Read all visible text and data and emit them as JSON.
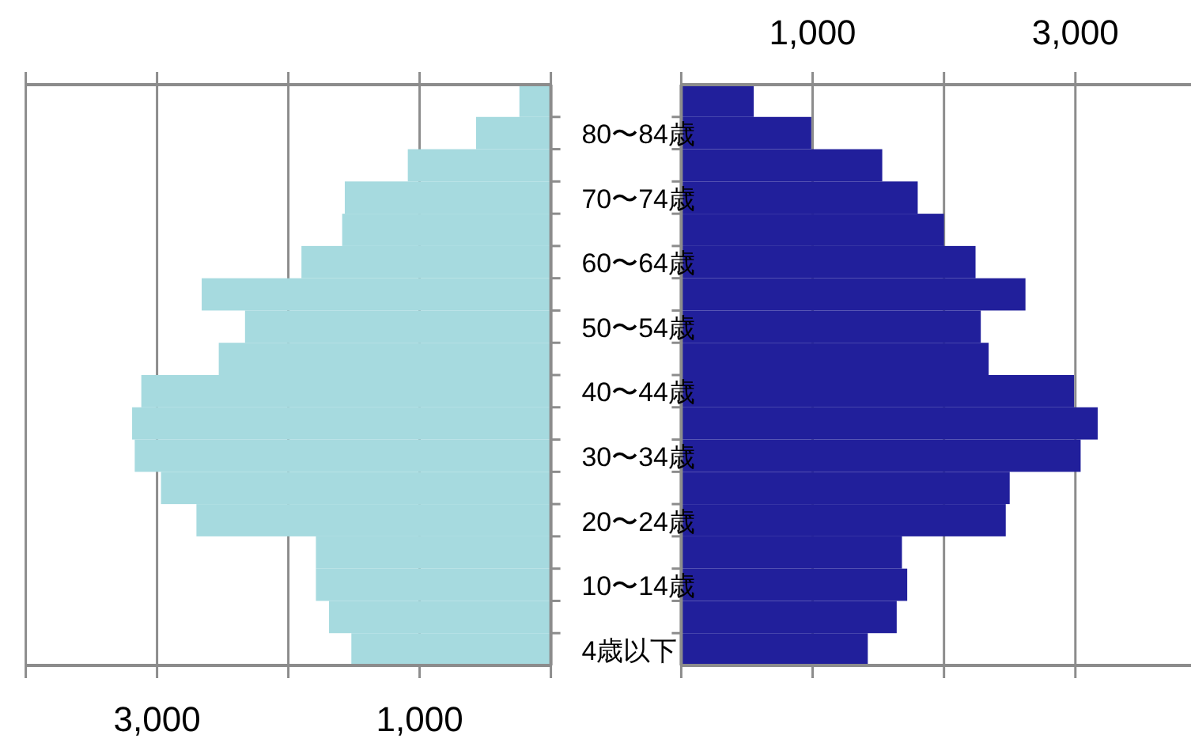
{
  "chart_data": [
    {
      "type": "bar",
      "orientation": "horizontal",
      "categories": [
        null,
        null,
        null,
        null,
        null,
        null,
        null,
        null,
        null,
        null,
        null,
        null,
        null,
        null,
        null,
        null,
        null,
        null
      ],
      "values": [
        240,
        570,
        1090,
        1570,
        1590,
        1900,
        2660,
        2330,
        2530,
        3120,
        3190,
        3170,
        2970,
        2700,
        1790,
        1790,
        1690,
        1520
      ],
      "color": "#a6dadf",
      "xlim": [
        4000,
        0
      ],
      "xticks": [
        {
          "value": 4000,
          "label": null
        },
        {
          "value": 3000,
          "label": "3,000"
        },
        {
          "value": 2000,
          "label": null
        },
        {
          "value": 1000,
          "label": "1,000"
        },
        {
          "value": 0,
          "label": null
        }
      ],
      "grid": "x",
      "tick_labels": "x"
    },
    {
      "type": "bar",
      "orientation": "horizontal",
      "categories": [
        null,
        "80〜84歳",
        null,
        "70〜74歳",
        null,
        "60〜64歳",
        null,
        "50〜54歳",
        null,
        "40〜44歳",
        null,
        "30〜34歳",
        null,
        "20〜24歳",
        null,
        "10〜14歳",
        null,
        "4歳以下"
      ],
      "values": [
        552,
        990,
        1530,
        1800,
        2000,
        2240,
        2620,
        2280,
        2340,
        2990,
        3170,
        3040,
        2500,
        2470,
        1680,
        1720,
        1640,
        1420
      ],
      "color": "#211f9b",
      "xlim": [
        0,
        3880
      ],
      "xticks": [
        {
          "value": 0,
          "label": null
        },
        {
          "value": 1000,
          "label": "1,000"
        },
        {
          "value": 2000,
          "label": null
        },
        {
          "value": 3000,
          "label": "3,000"
        }
      ],
      "grid": "x"
    }
  ]
}
